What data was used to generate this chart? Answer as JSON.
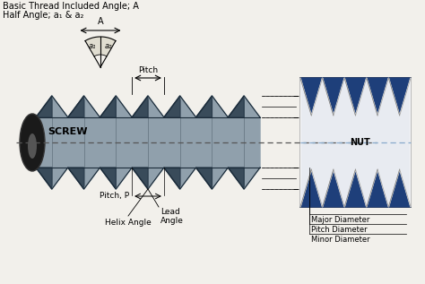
{
  "bg_color": "#f2f0eb",
  "title_lines": [
    "Basic Thread Included Angle; A",
    "Half Angle; a₁ & a₂"
  ],
  "screw_label": "SCREW",
  "nut_label": "NUT",
  "nut_bg": "#1e3f7a",
  "annotations": {
    "pitch_top": "Pitch",
    "pitch_bottom": "Pitch, P",
    "helix": "Helix Angle",
    "lead": "Lead\nAngle",
    "major": "Major Diameter",
    "pitch_dia": "Pitch Diameter",
    "minor": "Minor Diameter",
    "angle_A": "A",
    "angle_a1": "a₁",
    "angle_a2": "a₂"
  },
  "thread_dark": "#2a3a4a",
  "thread_mid": "#6a8090",
  "thread_light": "#c0ccd4",
  "thread_highlight": "#e0e8ec",
  "body_color": "#c8cfd4",
  "line_color": "#333333",
  "font_size_small": 6.5,
  "font_size_label": 8,
  "font_size_title": 7
}
